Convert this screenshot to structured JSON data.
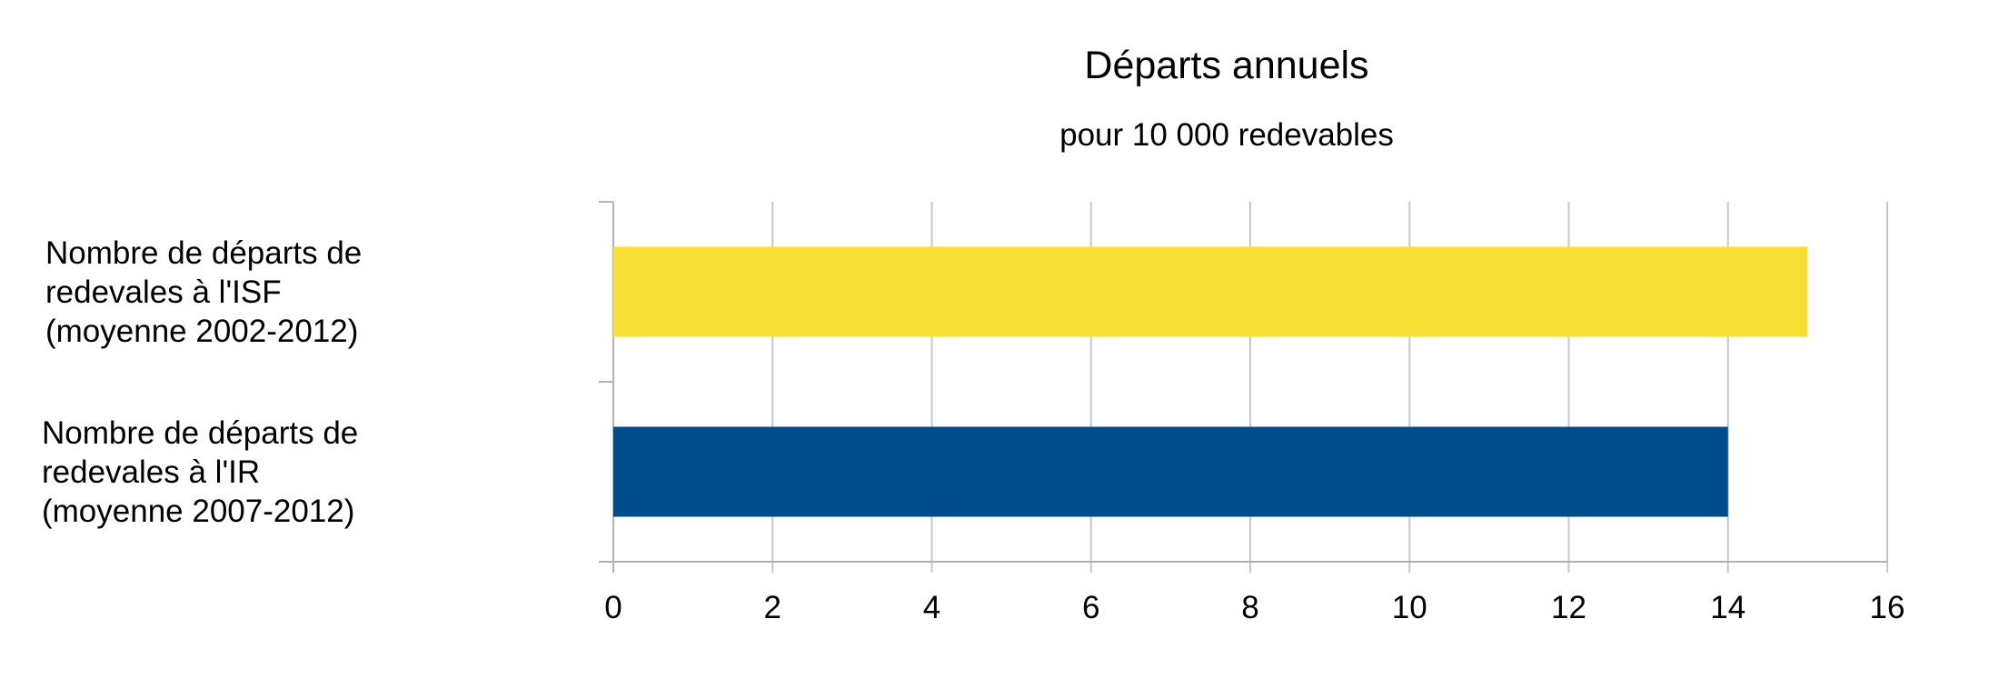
{
  "chart_data": {
    "type": "bar",
    "orientation": "horizontal",
    "title": "Départs annuels",
    "subtitle": "pour 10 000 redevables",
    "xlabel": "",
    "ylabel": "",
    "xlim": [
      0,
      16
    ],
    "x_ticks": [
      "0",
      "2",
      "4",
      "6",
      "8",
      "10",
      "12",
      "14",
      "16"
    ],
    "grid": true,
    "legend": "none",
    "categories": [
      [
        "Nombre de départs de",
        "redevales à l'ISF",
        "(moyenne 2002-2012)"
      ],
      [
        "Nombre de départs de",
        "redevales à l'IR",
        "(moyenne 2007-2012)"
      ]
    ],
    "values": [
      15,
      14
    ],
    "colors": [
      "#f7e033",
      "#004c8a"
    ]
  }
}
